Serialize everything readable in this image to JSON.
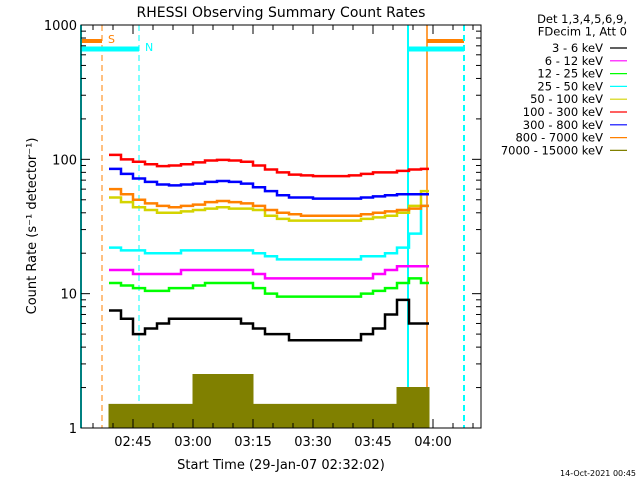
{
  "chart_data": {
    "type": "line",
    "title": "RHESSI Observing Summary Count Rates",
    "xlabel": "Start Time (29-Jan-07 02:32:02)",
    "ylabel": "Count Rate (s⁻¹ detector⁻¹)",
    "yscale": "log",
    "ylim": [
      1,
      1000
    ],
    "xlim_minutes_after_0230": [
      2,
      102
    ],
    "x_unit": "minutes after 02:30",
    "xticks": [
      {
        "v": 15,
        "label": "02:45"
      },
      {
        "v": 30,
        "label": "03:00"
      },
      {
        "v": 45,
        "label": "03:15"
      },
      {
        "v": 60,
        "label": "03:30"
      },
      {
        "v": 75,
        "label": "03:45"
      },
      {
        "v": 90,
        "label": "04:00"
      }
    ],
    "yticks": [
      {
        "v": 1,
        "label": "1"
      },
      {
        "v": 10,
        "label": "10"
      },
      {
        "v": 100,
        "label": "100"
      },
      {
        "v": 1000,
        "label": "1000"
      }
    ],
    "legend": {
      "placement": "right",
      "header": [
        "Det 1,3,4,5,6,9,",
        "FDecim 1, Att 0"
      ]
    },
    "x": [
      9,
      12,
      15,
      18,
      21,
      24,
      27,
      30,
      33,
      36,
      39,
      42,
      45,
      48,
      51,
      54,
      57,
      60,
      63,
      66,
      69,
      72,
      75,
      78,
      81,
      84,
      87
    ],
    "series": [
      {
        "name": "3 - 6 keV",
        "color": "#000000",
        "values": [
          7.5,
          6.5,
          5,
          5.5,
          6,
          6.5,
          6.5,
          6.5,
          6.5,
          6.5,
          6.5,
          6,
          5.5,
          5,
          5,
          4.5,
          4.5,
          4.5,
          4.5,
          4.5,
          4.5,
          5,
          5.5,
          7,
          9,
          6,
          6
        ]
      },
      {
        "name": "6 - 12 keV",
        "color": "#ff00ff",
        "values": [
          15,
          15,
          14,
          14,
          14,
          14,
          15,
          15,
          15,
          15,
          15,
          15,
          14,
          13,
          13,
          13,
          13,
          13,
          13,
          13,
          13,
          13,
          14,
          15,
          16,
          16,
          16
        ]
      },
      {
        "name": "12 - 25 keV",
        "color": "#00ff00",
        "values": [
          12,
          11.5,
          11,
          10.5,
          10.5,
          11,
          11,
          11.5,
          12,
          12,
          12,
          12,
          11,
          10,
          9.5,
          9.5,
          9.5,
          9.5,
          9.5,
          9.5,
          9.5,
          10,
          10.5,
          11,
          12,
          13,
          12
        ]
      },
      {
        "name": "25 - 50 keV",
        "color": "#00ffff",
        "values": [
          22,
          21,
          21,
          20,
          20,
          20,
          21,
          21,
          21,
          21,
          21,
          21,
          20,
          19,
          18,
          18,
          18,
          18,
          18,
          18,
          18,
          19,
          19,
          20,
          22,
          28,
          45
        ]
      },
      {
        "name": "50 - 100 keV",
        "color": "#d4d400",
        "values": [
          52,
          48,
          44,
          42,
          40,
          40,
          41,
          42,
          43,
          44,
          43,
          43,
          42,
          38,
          36,
          35,
          35,
          35,
          35,
          35,
          35,
          36,
          37,
          38,
          40,
          45,
          58
        ]
      },
      {
        "name": "100 - 300 keV",
        "color": "#ff0000",
        "values": [
          108,
          100,
          96,
          92,
          89,
          90,
          92,
          95,
          98,
          99,
          98,
          96,
          90,
          84,
          80,
          77,
          76,
          75,
          75,
          75,
          76,
          78,
          80,
          80,
          82,
          84,
          85
        ]
      },
      {
        "name": "300 - 800 keV",
        "color": "#0000ff",
        "values": [
          85,
          78,
          72,
          68,
          65,
          64,
          65,
          66,
          68,
          69,
          68,
          66,
          62,
          58,
          54,
          52,
          52,
          51,
          51,
          51,
          51,
          52,
          53,
          54,
          55,
          55,
          55
        ]
      },
      {
        "name": "800 - 7000 keV",
        "color": "#ff8000",
        "values": [
          60,
          55,
          50,
          47,
          45,
          44,
          45,
          46,
          48,
          49,
          48,
          47,
          45,
          42,
          40,
          39,
          38,
          38,
          38,
          38,
          38,
          39,
          40,
          41,
          42,
          43,
          45
        ]
      },
      {
        "name": "7000 - 15000 keV",
        "color": "#808000",
        "values": [
          1.5,
          1.5,
          1.5,
          1.5,
          1.5,
          1.5,
          1.5,
          2.5,
          2.5,
          2.5,
          2.5,
          2.5,
          1.5,
          1.5,
          1.5,
          1.5,
          1.5,
          1.5,
          1.5,
          1.5,
          1.5,
          1.5,
          1.5,
          1.5,
          2,
          2,
          2
        ]
      }
    ],
    "annotations": {
      "saa": {
        "label": "S",
        "color": "#ff8000",
        "intervals": [
          [
            2,
            7.25
          ],
          [
            88.5,
            97.75
          ]
        ]
      },
      "night": {
        "label": "N",
        "color": "#00ffff",
        "intervals": [
          [
            2,
            16.5
          ],
          [
            83.75,
            97.75
          ]
        ]
      }
    }
  },
  "timestamp": "14-Oct-2021 00:45"
}
